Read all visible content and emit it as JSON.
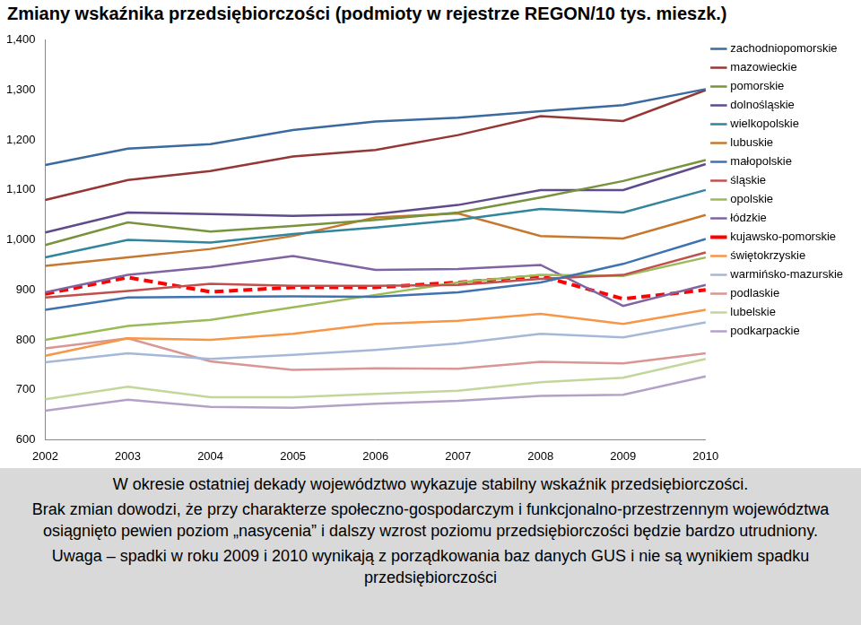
{
  "chart_data": {
    "type": "line",
    "title": "Zmiany wskaźnika przedsiębiorczości (podmioty w rejestrze REGON/10 tys. mieszk.)",
    "categories": [
      "2002",
      "2003",
      "2004",
      "2005",
      "2006",
      "2007",
      "2008",
      "2009",
      "2010"
    ],
    "series": [
      {
        "name": "zachodniopomorskie",
        "color": "#3a6a9e",
        "values": [
          1150,
          1183,
          1192,
          1220,
          1237,
          1245,
          1258,
          1270,
          1302
        ]
      },
      {
        "name": "mazowieckie",
        "color": "#953735",
        "values": [
          1080,
          1120,
          1138,
          1167,
          1180,
          1210,
          1248,
          1238,
          1300
        ]
      },
      {
        "name": "pomorskie",
        "color": "#77933c",
        "values": [
          990,
          1035,
          1017,
          1028,
          1040,
          1055,
          1085,
          1118,
          1160
        ]
      },
      {
        "name": "dolnośląskie",
        "color": "#5f4b8b",
        "values": [
          1015,
          1055,
          1052,
          1048,
          1052,
          1070,
          1100,
          1100,
          1152
        ]
      },
      {
        "name": "wielkopolskie",
        "color": "#31859c",
        "values": [
          965,
          1000,
          995,
          1012,
          1025,
          1040,
          1062,
          1055,
          1100
        ]
      },
      {
        "name": "lubuskie",
        "color": "#c6782f",
        "values": [
          948,
          965,
          982,
          1008,
          1045,
          1053,
          1008,
          1003,
          1050
        ]
      },
      {
        "name": "małopolskie",
        "color": "#3f73b0",
        "values": [
          860,
          885,
          886,
          887,
          886,
          895,
          915,
          952,
          1002
        ]
      },
      {
        "name": "śląskie",
        "color": "#c0504d",
        "values": [
          885,
          898,
          912,
          908,
          908,
          910,
          922,
          930,
          975
        ]
      },
      {
        "name": "opolskie",
        "color": "#9bbb59",
        "values": [
          800,
          828,
          840,
          865,
          890,
          915,
          930,
          928,
          965
        ]
      },
      {
        "name": "łódzkie",
        "color": "#8064a2",
        "values": [
          895,
          930,
          946,
          968,
          940,
          942,
          950,
          868,
          910
        ]
      },
      {
        "name": "kujawsko-pomorskie",
        "color": "#ff0000",
        "line_style": "dashed",
        "values": [
          892,
          925,
          896,
          905,
          905,
          915,
          928,
          882,
          900
        ]
      },
      {
        "name": "świętokrzyskie",
        "color": "#f79646",
        "values": [
          768,
          803,
          800,
          812,
          832,
          838,
          852,
          832,
          860
        ]
      },
      {
        "name": "warmińsko-mazurskie",
        "color": "#a5b8d7",
        "values": [
          755,
          773,
          762,
          770,
          780,
          793,
          812,
          805,
          835
        ]
      },
      {
        "name": "podlaskie",
        "color": "#d99694",
        "values": [
          783,
          803,
          757,
          740,
          743,
          742,
          756,
          753,
          773
        ]
      },
      {
        "name": "lubelskie",
        "color": "#c3d69b",
        "values": [
          681,
          706,
          685,
          685,
          692,
          698,
          715,
          724,
          762
        ]
      },
      {
        "name": "podkarpackie",
        "color": "#b3a2c7",
        "values": [
          658,
          680,
          666,
          664,
          672,
          678,
          688,
          690,
          727
        ]
      }
    ],
    "ylim": [
      600,
      1400
    ],
    "yticks": [
      600,
      700,
      800,
      900,
      1000,
      1100,
      1200,
      1300,
      1400
    ],
    "grid": false,
    "legend": "right",
    "marker": "none",
    "annotations": [
      "W okresie ostatniej dekady województwo wykazuje stabilny wskaźnik przedsiębiorczości.",
      "Brak zmian dowodzi, że przy charakterze społeczno-gospodarczym i funkcjonalno-przestrzennym województwa osiągnięto pewien poziom „nasycenia” i dalszy wzrost poziomu przedsiębiorczości będzie bardzo utrudniony.",
      "Uwaga – spadki w roku 2009 i 2010 wynikają z porządkowania baz danych GUS i nie są wynikiem spadku przedsiębiorczości"
    ]
  }
}
